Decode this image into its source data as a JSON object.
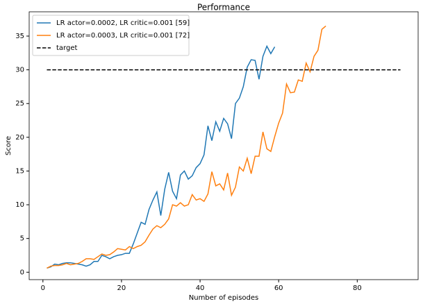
{
  "chart_data": {
    "type": "line",
    "title": "Performance",
    "x_label": "Number of episodes",
    "y_label": "Score",
    "xlim": [
      -3.5,
      95.5
    ],
    "xticks": [
      0,
      20,
      40,
      60,
      80
    ],
    "ylim": [
      -1.1,
      38.6
    ],
    "yticks": [
      0,
      5,
      10,
      15,
      20,
      25,
      30,
      35
    ],
    "grid": false,
    "legend": "upper left",
    "series": [
      {
        "name": "LR actor=0.0002, LR critic=0.001 [59]",
        "color": "#1f77b4",
        "dash": "solid",
        "x": [
          1,
          2,
          3,
          4,
          5,
          6,
          7,
          8,
          9,
          10,
          11,
          12,
          13,
          14,
          15,
          16,
          17,
          18,
          19,
          20,
          21,
          22,
          23,
          24,
          25,
          26,
          27,
          28,
          29,
          30,
          31,
          32,
          33,
          34,
          35,
          36,
          37,
          38,
          39,
          40,
          41,
          42,
          43,
          44,
          45,
          46,
          47,
          48,
          49,
          50,
          51,
          52,
          53,
          54,
          55,
          56,
          57,
          58,
          59
        ],
        "values": [
          0.6,
          0.8,
          1.2,
          1.1,
          1.3,
          1.4,
          1.4,
          1.3,
          1.2,
          1.1,
          0.9,
          1.1,
          1.6,
          1.6,
          2.5,
          2.3,
          2.0,
          2.3,
          2.5,
          2.6,
          2.8,
          2.8,
          4.2,
          5.8,
          7.4,
          7.1,
          9.3,
          10.7,
          11.9,
          8.4,
          12.3,
          14.8,
          12.0,
          10.9,
          14.4,
          15.0,
          13.8,
          14.3,
          15.5,
          16.1,
          17.4,
          21.7,
          19.5,
          22.3,
          20.9,
          22.8,
          22.0,
          19.8,
          25.0,
          25.8,
          27.5,
          30.4,
          31.5,
          31.4,
          28.6,
          32.0,
          33.5,
          32.4,
          33.4
        ]
      },
      {
        "name": "LR actor=0.0003, LR critic=0.001 [72]",
        "color": "#ff7f0e",
        "dash": "solid",
        "x": [
          1,
          2,
          3,
          4,
          5,
          6,
          7,
          8,
          9,
          10,
          11,
          12,
          13,
          14,
          15,
          16,
          17,
          18,
          19,
          20,
          21,
          22,
          23,
          24,
          25,
          26,
          27,
          28,
          29,
          30,
          31,
          32,
          33,
          34,
          35,
          36,
          37,
          38,
          39,
          40,
          41,
          42,
          43,
          44,
          45,
          46,
          47,
          48,
          49,
          50,
          51,
          52,
          53,
          54,
          55,
          56,
          57,
          58,
          59,
          60,
          61,
          62,
          63,
          64,
          65,
          66,
          67,
          68,
          69,
          70,
          71,
          72
        ],
        "values": [
          0.6,
          0.9,
          1.0,
          1.0,
          1.1,
          1.3,
          1.1,
          1.2,
          1.3,
          1.6,
          2.0,
          2.0,
          1.9,
          2.3,
          2.7,
          2.5,
          2.6,
          3.0,
          3.5,
          3.4,
          3.3,
          3.8,
          3.5,
          3.8,
          4.0,
          4.5,
          5.5,
          6.4,
          6.9,
          6.6,
          7.1,
          7.9,
          10.0,
          9.8,
          10.3,
          9.8,
          10.0,
          11.5,
          10.7,
          10.9,
          10.5,
          11.6,
          14.9,
          12.8,
          13.1,
          12.2,
          14.7,
          11.4,
          12.6,
          15.6,
          15.0,
          16.9,
          14.6,
          17.2,
          17.2,
          20.8,
          18.3,
          17.9,
          20.1,
          22.1,
          23.6,
          27.9,
          26.6,
          26.7,
          28.5,
          28.3,
          31.0,
          29.7,
          32.0,
          32.9,
          36.0,
          36.5
        ]
      },
      {
        "name": "target",
        "color": "#000000",
        "dash": "dashed",
        "x": [
          1,
          91
        ],
        "values": [
          30,
          30
        ]
      }
    ]
  }
}
